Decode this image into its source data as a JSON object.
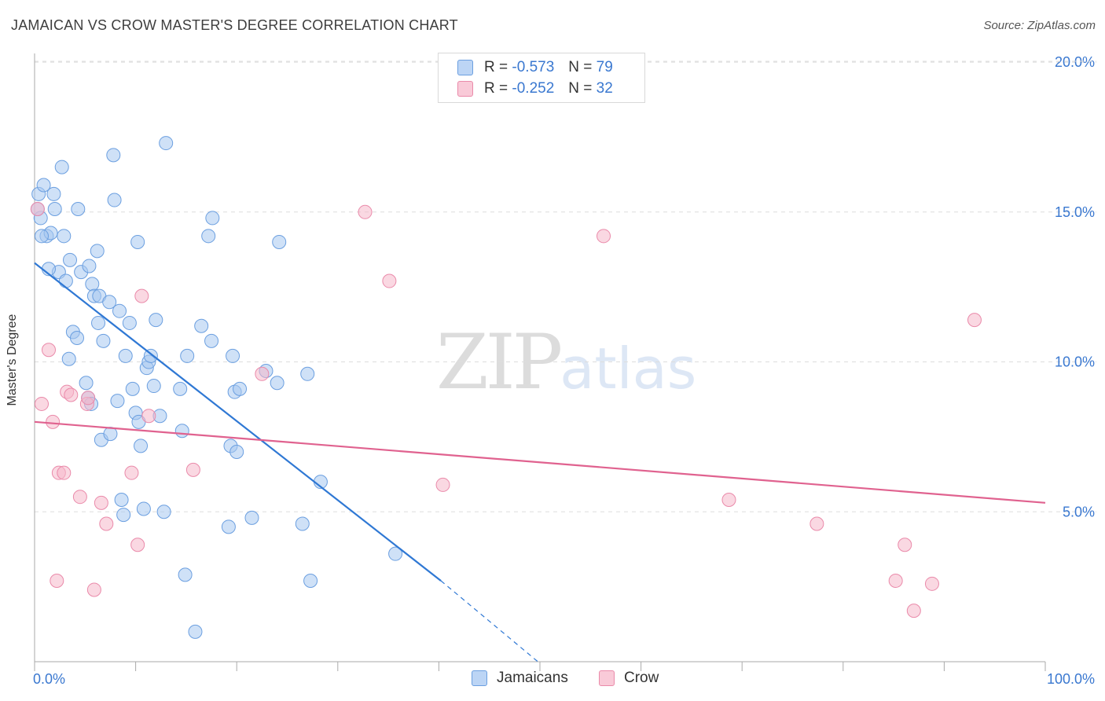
{
  "title": "JAMAICAN VS CROW MASTER'S DEGREE CORRELATION CHART",
  "source": "Source: ZipAtlas.com",
  "watermark": {
    "zip": "ZIP",
    "atlas": "atlas"
  },
  "legend": {
    "rows": [
      {
        "r_label": "R =",
        "r_value": "-0.573",
        "n_label": "N =",
        "n_value": "79"
      },
      {
        "r_label": "R =",
        "r_value": "-0.252",
        "n_label": "N =",
        "n_value": "32"
      }
    ]
  },
  "bottom_legend": [
    {
      "label": "Jamaicans"
    },
    {
      "label": "Crow"
    }
  ],
  "colors": {
    "blue_fill": "#a8c8f0",
    "blue_stroke": "#6b9fe0",
    "blue_line": "#2f78d4",
    "pink_fill": "#f6b8cb",
    "pink_stroke": "#ea8aaa",
    "pink_line": "#e0628f",
    "tick_text": "#3a78d0",
    "grid": "#dddddd"
  },
  "chart_data": {
    "type": "scatter",
    "title": "JAMAICAN VS CROW MASTER'S DEGREE CORRELATION CHART",
    "xlabel": "",
    "ylabel": "Master's Degree",
    "xlim": [
      0,
      100
    ],
    "ylim": [
      0,
      20.5
    ],
    "x_tick_labels": [
      "0.0%",
      "100.0%"
    ],
    "y_ticks": [
      5,
      10,
      15,
      20
    ],
    "y_tick_labels": [
      "5.0%",
      "10.0%",
      "15.0%",
      "20.0%"
    ],
    "grid": true,
    "series": [
      {
        "name": "Jamaicans",
        "points": [
          [
            0.4,
            15.6
          ],
          [
            0.6,
            14.8
          ],
          [
            0.9,
            15.9
          ],
          [
            1.2,
            14.2
          ],
          [
            1.6,
            14.3
          ],
          [
            1.9,
            15.6
          ],
          [
            2.0,
            15.1
          ],
          [
            2.4,
            13.0
          ],
          [
            2.7,
            16.5
          ],
          [
            2.9,
            14.2
          ],
          [
            3.1,
            12.7
          ],
          [
            3.5,
            13.4
          ],
          [
            3.8,
            11.0
          ],
          [
            4.2,
            10.8
          ],
          [
            4.3,
            15.1
          ],
          [
            4.6,
            13.0
          ],
          [
            3.4,
            10.1
          ],
          [
            5.1,
            9.3
          ],
          [
            5.3,
            8.8
          ],
          [
            5.4,
            13.2
          ],
          [
            5.6,
            8.6
          ],
          [
            5.7,
            12.6
          ],
          [
            5.9,
            12.2
          ],
          [
            6.2,
            13.7
          ],
          [
            6.4,
            12.2
          ],
          [
            6.3,
            11.3
          ],
          [
            6.6,
            7.4
          ],
          [
            6.8,
            10.7
          ],
          [
            7.4,
            12.0
          ],
          [
            7.5,
            7.6
          ],
          [
            7.8,
            16.9
          ],
          [
            7.9,
            15.4
          ],
          [
            8.2,
            8.7
          ],
          [
            8.4,
            11.7
          ],
          [
            8.6,
            5.4
          ],
          [
            8.8,
            4.9
          ],
          [
            9.0,
            10.2
          ],
          [
            9.4,
            11.3
          ],
          [
            9.7,
            9.1
          ],
          [
            10.0,
            8.3
          ],
          [
            10.2,
            14.0
          ],
          [
            10.3,
            8.0
          ],
          [
            10.5,
            7.2
          ],
          [
            10.8,
            5.1
          ],
          [
            11.1,
            9.8
          ],
          [
            11.3,
            10.0
          ],
          [
            11.5,
            10.2
          ],
          [
            11.8,
            9.2
          ],
          [
            12.0,
            11.4
          ],
          [
            12.4,
            8.2
          ],
          [
            12.8,
            5.0
          ],
          [
            13.0,
            17.3
          ],
          [
            14.4,
            9.1
          ],
          [
            14.6,
            7.7
          ],
          [
            14.9,
            2.9
          ],
          [
            15.1,
            10.2
          ],
          [
            15.9,
            1.0
          ],
          [
            16.5,
            11.2
          ],
          [
            17.2,
            14.2
          ],
          [
            17.5,
            10.7
          ],
          [
            17.6,
            14.8
          ],
          [
            19.2,
            4.5
          ],
          [
            19.4,
            7.2
          ],
          [
            19.6,
            10.2
          ],
          [
            19.8,
            9.0
          ],
          [
            20.0,
            7.0
          ],
          [
            20.3,
            9.1
          ],
          [
            21.5,
            4.8
          ],
          [
            22.9,
            9.7
          ],
          [
            24.0,
            9.3
          ],
          [
            24.2,
            14.0
          ],
          [
            26.5,
            4.6
          ],
          [
            27.0,
            9.6
          ],
          [
            27.3,
            2.7
          ],
          [
            28.3,
            6.0
          ],
          [
            35.7,
            3.6
          ],
          [
            0.3,
            15.1
          ],
          [
            0.7,
            14.2
          ],
          [
            1.4,
            13.1
          ]
        ]
      },
      {
        "name": "Crow",
        "points": [
          [
            0.3,
            15.1
          ],
          [
            0.7,
            8.6
          ],
          [
            1.4,
            10.4
          ],
          [
            1.8,
            8.0
          ],
          [
            2.2,
            2.7
          ],
          [
            2.4,
            6.3
          ],
          [
            2.9,
            6.3
          ],
          [
            3.2,
            9.0
          ],
          [
            3.6,
            8.9
          ],
          [
            4.5,
            5.5
          ],
          [
            5.2,
            8.6
          ],
          [
            5.3,
            8.8
          ],
          [
            5.9,
            2.4
          ],
          [
            6.6,
            5.3
          ],
          [
            7.1,
            4.6
          ],
          [
            9.6,
            6.3
          ],
          [
            10.2,
            3.9
          ],
          [
            10.6,
            12.2
          ],
          [
            11.3,
            8.2
          ],
          [
            15.7,
            6.4
          ],
          [
            22.5,
            9.6
          ],
          [
            32.7,
            15.0
          ],
          [
            35.1,
            12.7
          ],
          [
            40.4,
            5.9
          ],
          [
            56.3,
            14.2
          ],
          [
            68.7,
            5.4
          ],
          [
            77.4,
            4.6
          ],
          [
            85.2,
            2.7
          ],
          [
            86.1,
            3.9
          ],
          [
            87.0,
            1.7
          ],
          [
            88.8,
            2.6
          ],
          [
            93.0,
            11.4
          ]
        ]
      }
    ],
    "trend_lines": [
      {
        "series": "Jamaicans",
        "solid": {
          "x0": 0.0,
          "y0": 13.3,
          "x1": 40.2,
          "y1": 2.7
        },
        "dashed": {
          "x0": 40.2,
          "y0": 2.7,
          "x1": 49.8,
          "y1": 0.0
        }
      },
      {
        "series": "Crow",
        "solid": {
          "x0": 0.0,
          "y0": 8.0,
          "x1": 100.0,
          "y1": 5.3
        }
      }
    ]
  }
}
